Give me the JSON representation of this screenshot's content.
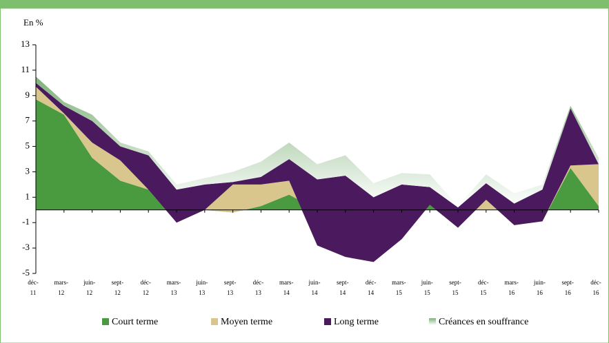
{
  "chart_data": {
    "type": "stacked_area",
    "y_label": "En %",
    "categories": [
      "déc-11",
      "mars-12",
      "juin-12",
      "sept-12",
      "déc-12",
      "mars-13",
      "juin-13",
      "sept-13",
      "déc-13",
      "mars-14",
      "juin-14",
      "sept-14",
      "déc-14",
      "mars-15",
      "juin-15",
      "sept-15",
      "déc-15",
      "mars-16",
      "juin-16",
      "sept-16",
      "déc-16"
    ],
    "series": [
      {
        "name": "Court terme",
        "color": "#4a9a3f",
        "values": [
          8.7,
          7.5,
          4.1,
          2.3,
          1.6,
          0,
          0,
          -0.2,
          0.3,
          1.2,
          0,
          0,
          0,
          0,
          0.4,
          0,
          0,
          0,
          -0.9,
          3.3,
          0.3
        ]
      },
      {
        "name": "Moyen terme",
        "color": "#d8c68c",
        "values": [
          1.0,
          0.1,
          1.2,
          1.6,
          0,
          -1.0,
          0,
          2.2,
          1.7,
          1.1,
          -2.8,
          -3.7,
          -4.1,
          -2.3,
          0,
          -1.4,
          0.8,
          -1.2,
          0,
          0.2,
          3.3
        ]
      },
      {
        "name": "Long terme",
        "color": "#4b1a5e",
        "values": [
          0.3,
          0.6,
          1.7,
          1.1,
          2.7,
          2.6,
          2.0,
          0.2,
          0.6,
          1.7,
          5.2,
          6.4,
          5.1,
          4.3,
          1.4,
          1.6,
          1.3,
          1.7,
          2.5,
          4.5,
          0
        ]
      },
      {
        "name": "Créances en souffrance",
        "color": "#7fb27a",
        "values": [
          0.5,
          0.3,
          0.5,
          0.3,
          0.3,
          0.4,
          0.5,
          0.8,
          1.2,
          1.3,
          1.2,
          1.6,
          1.1,
          0.9,
          1.0,
          0.1,
          0.7,
          0.8,
          0.4,
          0.2,
          0.5
        ]
      }
    ],
    "ylim": [
      -5,
      13
    ],
    "yticks": [
      -5,
      -3,
      -1,
      1,
      3,
      5,
      7,
      9,
      11,
      13
    ]
  }
}
